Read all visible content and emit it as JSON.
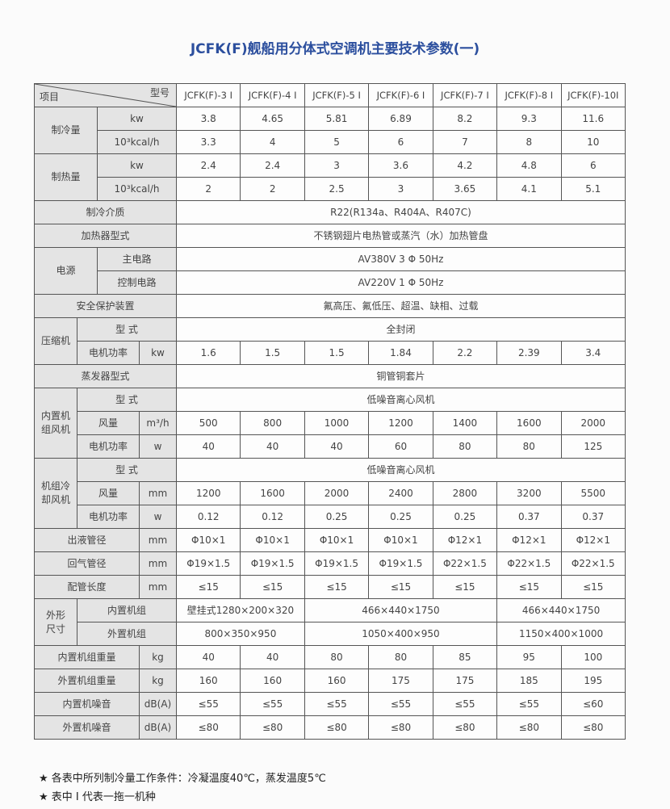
{
  "title": "JCFK(F)舰船用分体式空调机主要技术参数(一)",
  "header": {
    "item": "项目",
    "model": "型号"
  },
  "models": [
    "JCFK(F)-3 I",
    "JCFK(F)-4 I",
    "JCFK(F)-5 I",
    "JCFK(F)-6 I",
    "JCFK(F)-7 I",
    "JCFK(F)-8 I",
    "JCFK(F)-10I"
  ],
  "cooling": {
    "label": "制冷量",
    "kw_unit": "kw",
    "kw": [
      "3.8",
      "4.65",
      "5.81",
      "6.89",
      "8.2",
      "9.3",
      "11.6"
    ],
    "kcal_unit": "10³kcal/h",
    "kcal": [
      "3.3",
      "4",
      "5",
      "6",
      "7",
      "8",
      "10"
    ]
  },
  "heating": {
    "label": "制热量",
    "kw_unit": "kw",
    "kw": [
      "2.4",
      "2.4",
      "3",
      "3.6",
      "4.2",
      "4.8",
      "6"
    ],
    "kcal_unit": "10³kcal/h",
    "kcal": [
      "2",
      "2",
      "2.5",
      "3",
      "3.65",
      "4.1",
      "5.1"
    ]
  },
  "refrigerant": {
    "label": "制冷介质",
    "value": "R22(R134a、R404A、R407C)"
  },
  "heater_type": {
    "label": "加热器型式",
    "value": "不锈钢翅片电热管或蒸汽（水）加热管盘"
  },
  "power": {
    "label": "电源",
    "main_label": "主电路",
    "main": "AV380V 3 Φ 50Hz",
    "control_label": "控制电路",
    "control": "AV220V 1 Φ 50Hz"
  },
  "protection": {
    "label": "安全保护装置",
    "value": "氟高压、氟低压、超温、缺相、过载"
  },
  "compressor": {
    "label": "压缩机",
    "type_label": "型 式",
    "type": "全封闭",
    "power_label": "电机功率",
    "power_unit": "kw",
    "power": [
      "1.6",
      "1.5",
      "1.5",
      "1.84",
      "2.2",
      "2.39",
      "3.4"
    ]
  },
  "evaporator": {
    "label": "蒸发器型式",
    "value": "铜管铜套片"
  },
  "indoor_fan": {
    "label": "内置机\n组风机",
    "type_label": "型 式",
    "type": "低噪音离心风机",
    "airflow_label": "风量",
    "airflow_unit": "m³/h",
    "airflow": [
      "500",
      "800",
      "1000",
      "1200",
      "1400",
      "1600",
      "2000"
    ],
    "power_label": "电机功率",
    "power_unit": "w",
    "power": [
      "40",
      "40",
      "40",
      "60",
      "80",
      "80",
      "125"
    ]
  },
  "cooling_fan": {
    "label": "机组冷\n却风机",
    "type_label": "型 式",
    "type": "低噪音离心风机",
    "airflow_label": "风量",
    "airflow_unit": "mm",
    "airflow": [
      "1200",
      "1600",
      "2000",
      "2400",
      "2800",
      "3200",
      "5500"
    ],
    "power_label": "电机功率",
    "power_unit": "w",
    "power": [
      "0.12",
      "0.12",
      "0.25",
      "0.25",
      "0.25",
      "0.37",
      "0.37"
    ]
  },
  "liquid_pipe": {
    "label": "出液管径",
    "unit": "mm",
    "values": [
      "Φ10×1",
      "Φ10×1",
      "Φ10×1",
      "Φ10×1",
      "Φ12×1",
      "Φ12×1",
      "Φ12×1"
    ]
  },
  "gas_pipe": {
    "label": "回气管径",
    "unit": "mm",
    "values": [
      "Φ19×1.5",
      "Φ19×1.5",
      "Φ19×1.5",
      "Φ19×1.5",
      "Φ22×1.5",
      "Φ22×1.5",
      "Φ22×1.5"
    ]
  },
  "pipe_length": {
    "label": "配管长度",
    "unit": "mm",
    "values": [
      "≤15",
      "≤15",
      "≤15",
      "≤15",
      "≤15",
      "≤15",
      "≤15"
    ]
  },
  "dimensions": {
    "label": "外形\n尺寸",
    "indoor_label": "内置机组",
    "indoor": [
      "壁挂式1280×200×320",
      "466×440×1750",
      "466×440×1750"
    ],
    "outdoor_label": "外置机组",
    "outdoor": [
      "800×350×950",
      "1050×400×950",
      "1150×400×1000"
    ]
  },
  "indoor_weight": {
    "label": "内置机组重量",
    "unit": "kg",
    "values": [
      "40",
      "40",
      "80",
      "80",
      "85",
      "95",
      "100"
    ]
  },
  "outdoor_weight": {
    "label": "外置机组重量",
    "unit": "kg",
    "values": [
      "160",
      "160",
      "160",
      "175",
      "175",
      "185",
      "195"
    ]
  },
  "indoor_noise": {
    "label": "内置机噪音",
    "unit": "dB(A)",
    "values": [
      "≤55",
      "≤55",
      "≤55",
      "≤55",
      "≤55",
      "≤55",
      "≤60"
    ]
  },
  "outdoor_noise": {
    "label": "外置机噪音",
    "unit": "dB(A)",
    "values": [
      "≤80",
      "≤80",
      "≤80",
      "≤80",
      "≤80",
      "≤80",
      "≤80"
    ]
  },
  "notes": [
    "★ 各表中所列制冷量工作条件：冷凝温度40℃，蒸发温度5℃",
    "★ 表中 I 代表一拖一机种"
  ]
}
